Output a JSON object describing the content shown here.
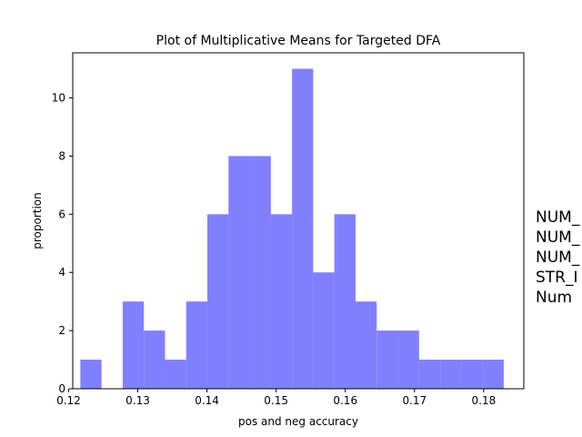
{
  "chart_data": {
    "type": "bar",
    "title": "Plot of Multiplicative Means for Targeted DFA",
    "xlabel": "pos and neg accuracy",
    "ylabel": "proportion",
    "xlim": [
      0.1206,
      0.1858
    ],
    "ylim": [
      0,
      11.55
    ],
    "x_ticks": [
      0.12,
      0.13,
      0.14,
      0.15,
      0.16,
      0.17,
      0.18
    ],
    "x_tick_labels": [
      "0.12",
      "0.13",
      "0.14",
      "0.15",
      "0.16",
      "0.17",
      "0.18"
    ],
    "y_ticks": [
      0,
      2,
      4,
      6,
      8,
      10
    ],
    "y_tick_labels": [
      "0",
      "2",
      "4",
      "6",
      "8",
      "10"
    ],
    "bin_edges": [
      0.1217,
      0.12476,
      0.12782,
      0.13088,
      0.13394,
      0.137,
      0.14006,
      0.14312,
      0.14618,
      0.14924,
      0.1523,
      0.15536,
      0.15842,
      0.16148,
      0.16454,
      0.1676,
      0.17066,
      0.17372,
      0.17678,
      0.17984,
      0.1829
    ],
    "values": [
      1,
      0,
      3,
      2,
      1,
      3,
      6,
      8,
      8,
      6,
      11,
      4,
      6,
      3,
      2,
      2,
      1,
      1,
      1,
      1
    ],
    "bar_color": "#8080ff",
    "grid": false,
    "side_text": [
      "NUM_",
      "NUM_",
      "NUM_",
      "STR_I",
      "Num "
    ]
  }
}
